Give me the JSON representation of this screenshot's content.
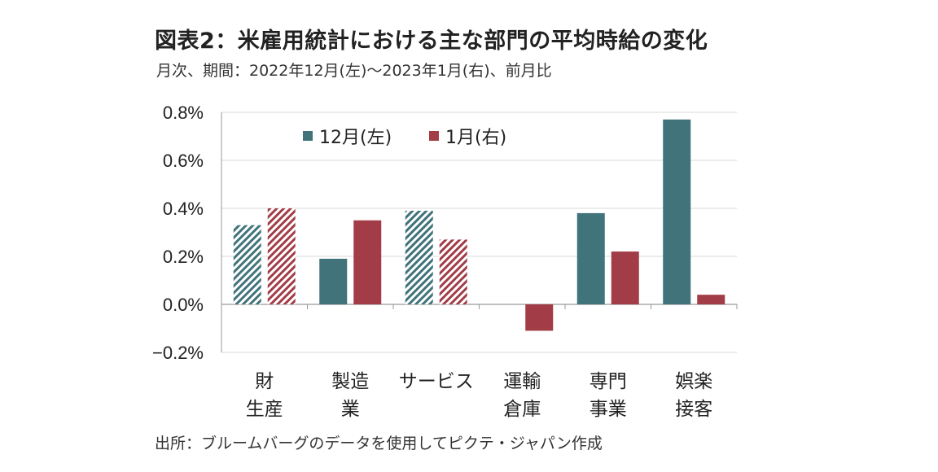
{
  "header": {
    "title": "図表2：米雇用統計における主な部門の平均時給の変化",
    "subtitle": "月次、期間：2022年12月(左)～2023年1月(右)、前月比"
  },
  "footer": {
    "source": "出所：ブルームバーグのデータを使用してピクテ・ジャパン作成"
  },
  "colors": {
    "dec": "#41737a",
    "jan": "#a23c47",
    "grid": "#d9d9d9",
    "axis": "#999999"
  },
  "chart_data": {
    "type": "bar",
    "categories": [
      [
        "財",
        "生産"
      ],
      [
        "製造",
        "業"
      ],
      [
        "サービス"
      ],
      [
        "運輸",
        "倉庫"
      ],
      [
        "専門",
        "事業"
      ],
      [
        "娯楽",
        "接客"
      ]
    ],
    "series": [
      {
        "name": "12月(左)",
        "values": [
          0.33,
          0.19,
          0.39,
          null,
          0.38,
          0.77
        ],
        "hatched": [
          true,
          false,
          true,
          false,
          false,
          false
        ]
      },
      {
        "name": "1月(右)",
        "values": [
          0.4,
          0.35,
          0.27,
          -0.11,
          0.22,
          0.04
        ],
        "hatched": [
          true,
          false,
          true,
          false,
          false,
          false
        ]
      }
    ],
    "yticks": [
      "0.8%",
      "0.6%",
      "0.4%",
      "0.2%",
      "0.0%",
      "−0.2%"
    ],
    "ylim": [
      -0.2,
      0.8
    ],
    "grid": true,
    "legend": "top-left"
  }
}
